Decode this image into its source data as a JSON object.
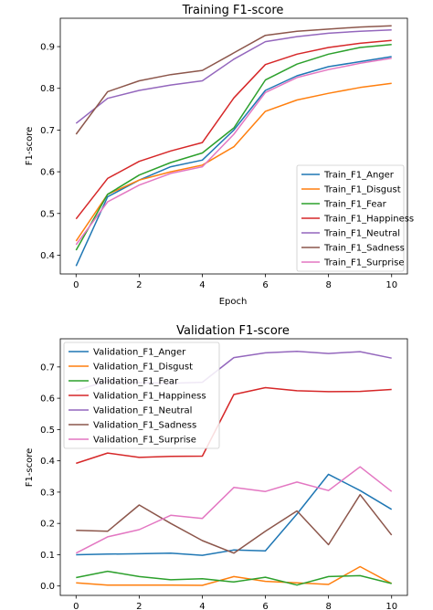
{
  "chart_data": [
    {
      "type": "line",
      "title": "Training F1-score",
      "xlabel": "Epoch",
      "ylabel": "F1-score",
      "xlim": [
        -0.5,
        10.5
      ],
      "ylim": [
        0.355,
        0.968
      ],
      "xticks": [
        0,
        2,
        4,
        6,
        8,
        10
      ],
      "yticks": [
        0.4,
        0.5,
        0.6,
        0.7,
        0.8,
        0.9
      ],
      "ytick_labels": [
        "0.4",
        "0.5",
        "0.6",
        "0.7",
        "0.8",
        "0.9"
      ],
      "grid": false,
      "legend_position": "lower-right",
      "x": [
        0,
        1,
        2,
        3,
        4,
        5,
        6,
        7,
        8,
        9,
        10
      ],
      "series": [
        {
          "name": "Train_F1_Anger",
          "color": "#1f77b4",
          "values": [
            0.374,
            0.54,
            0.58,
            0.612,
            0.628,
            0.7,
            0.795,
            0.83,
            0.852,
            0.864,
            0.876
          ]
        },
        {
          "name": "Train_F1_Disgust",
          "color": "#ff7f0e",
          "values": [
            0.434,
            0.546,
            0.58,
            0.6,
            0.616,
            0.66,
            0.745,
            0.772,
            0.788,
            0.802,
            0.812
          ]
        },
        {
          "name": "Train_F1_Fear",
          "color": "#2ca02c",
          "values": [
            0.412,
            0.546,
            0.592,
            0.622,
            0.645,
            0.705,
            0.82,
            0.858,
            0.882,
            0.898,
            0.905
          ]
        },
        {
          "name": "Train_F1_Happiness",
          "color": "#d62728",
          "values": [
            0.487,
            0.584,
            0.625,
            0.65,
            0.67,
            0.777,
            0.857,
            0.882,
            0.898,
            0.908,
            0.915
          ]
        },
        {
          "name": "Train_F1_Neutral",
          "color": "#9467bd",
          "values": [
            0.716,
            0.776,
            0.795,
            0.808,
            0.818,
            0.87,
            0.912,
            0.924,
            0.932,
            0.937,
            0.94
          ]
        },
        {
          "name": "Train_F1_Sadness",
          "color": "#8c564b",
          "values": [
            0.69,
            0.792,
            0.818,
            0.833,
            0.843,
            0.885,
            0.927,
            0.937,
            0.942,
            0.947,
            0.95
          ]
        },
        {
          "name": "Train_F1_Surprise",
          "color": "#e377c2",
          "values": [
            0.425,
            0.528,
            0.568,
            0.596,
            0.612,
            0.69,
            0.79,
            0.826,
            0.845,
            0.86,
            0.872
          ]
        }
      ]
    },
    {
      "type": "line",
      "title": "Validation F1-score",
      "xlabel": "",
      "ylabel": "F1-score",
      "xlim": [
        -0.5,
        10.5
      ],
      "ylim": [
        -0.03,
        0.79
      ],
      "xticks": [
        0,
        2,
        4,
        6,
        8,
        10
      ],
      "yticks": [
        0.0,
        0.1,
        0.2,
        0.3,
        0.4,
        0.5,
        0.6,
        0.7
      ],
      "ytick_labels": [
        "0.0",
        "0.1",
        "0.2",
        "0.3",
        "0.4",
        "0.5",
        "0.6",
        "0.7"
      ],
      "grid": false,
      "legend_position": "upper-left",
      "x": [
        0,
        1,
        2,
        3,
        4,
        5,
        6,
        7,
        8,
        9,
        10
      ],
      "series": [
        {
          "name": "Validation_F1_Anger",
          "color": "#1f77b4",
          "values": [
            0.1,
            0.102,
            0.103,
            0.105,
            0.098,
            0.115,
            0.112,
            0.23,
            0.357,
            0.305,
            0.245
          ]
        },
        {
          "name": "Validation_F1_Disgust",
          "color": "#ff7f0e",
          "values": [
            0.01,
            0.003,
            0.003,
            0.003,
            0.002,
            0.03,
            0.015,
            0.01,
            0.005,
            0.062,
            0.008
          ]
        },
        {
          "name": "Validation_F1_Fear",
          "color": "#2ca02c",
          "values": [
            0.027,
            0.047,
            0.03,
            0.02,
            0.023,
            0.013,
            0.028,
            0.003,
            0.03,
            0.033,
            0.008
          ]
        },
        {
          "name": "Validation_F1_Happiness",
          "color": "#d62728",
          "values": [
            0.392,
            0.425,
            0.411,
            0.414,
            0.415,
            0.612,
            0.634,
            0.624,
            0.621,
            0.622,
            0.628
          ]
        },
        {
          "name": "Validation_F1_Neutral",
          "color": "#9467bd",
          "values": [
            0.625,
            0.655,
            0.65,
            0.648,
            0.651,
            0.73,
            0.745,
            0.75,
            0.743,
            0.749,
            0.728
          ]
        },
        {
          "name": "Validation_F1_Sadness",
          "color": "#8c564b",
          "values": [
            0.178,
            0.175,
            0.259,
            0.2,
            0.145,
            0.105,
            0.175,
            0.24,
            0.132,
            0.292,
            0.163
          ]
        },
        {
          "name": "Validation_F1_Surprise",
          "color": "#e377c2",
          "values": [
            0.105,
            0.157,
            0.18,
            0.226,
            0.216,
            0.315,
            0.302,
            0.332,
            0.305,
            0.381,
            0.302
          ]
        }
      ]
    }
  ]
}
